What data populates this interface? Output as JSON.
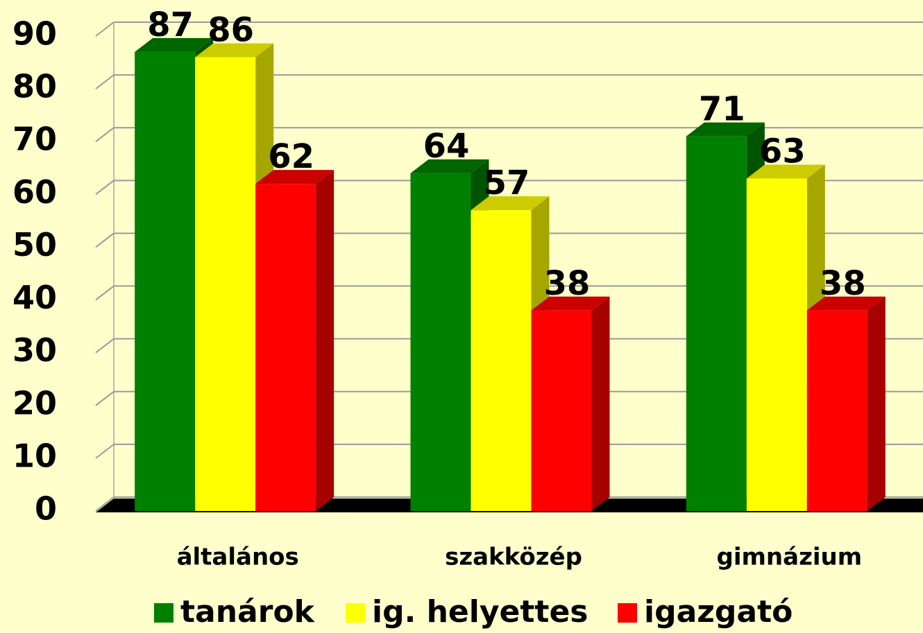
{
  "chart_data": {
    "type": "bar3d",
    "categories": [
      "általános",
      "szakközép",
      "gimnázium"
    ],
    "series": [
      {
        "name": "tanárok",
        "color": "#008000",
        "values": [
          87,
          64,
          71
        ]
      },
      {
        "name": "ig. helyettes",
        "color": "#ffff00",
        "values": [
          86,
          57,
          63
        ]
      },
      {
        "name": "igazgató",
        "color": "#ff0000",
        "values": [
          62,
          38,
          38
        ]
      }
    ],
    "ylim": [
      0,
      90
    ],
    "yticks": [
      0,
      10,
      20,
      30,
      40,
      50,
      60,
      70,
      80,
      90
    ],
    "grid": true,
    "legend": "bottom"
  }
}
